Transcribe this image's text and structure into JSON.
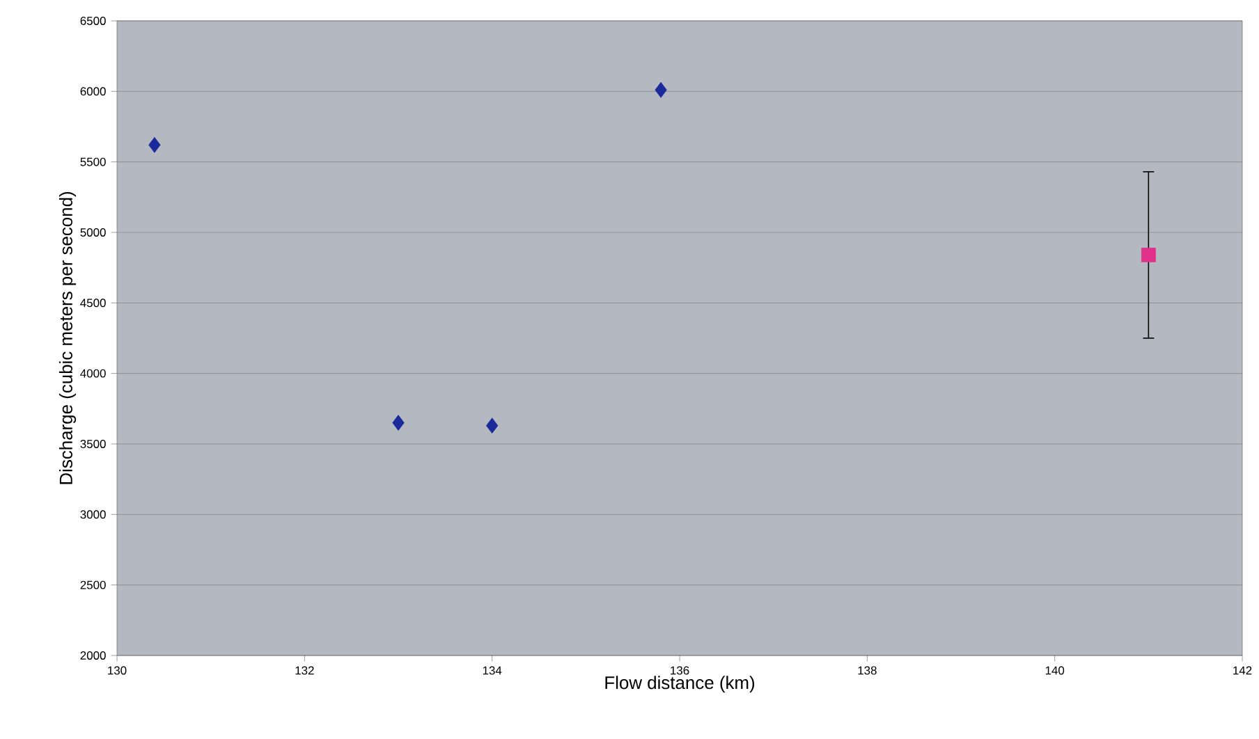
{
  "chart_data": {
    "type": "scatter",
    "xlabel": "Flow distance (km)",
    "ylabel": "Discharge (cubic meters per second)",
    "xlim": [
      130,
      142
    ],
    "ylim": [
      2000,
      6500
    ],
    "xticks": [
      130,
      132,
      134,
      136,
      138,
      140,
      142
    ],
    "yticks": [
      2000,
      2500,
      3000,
      3500,
      4000,
      4500,
      5000,
      5500,
      6000,
      6500
    ],
    "grid": "y",
    "series": [
      {
        "color": "#1a2a9a",
        "marker": "diamond",
        "x": [
          130.4,
          133.0,
          134.0,
          135.8
        ],
        "values": [
          5620,
          3650,
          3630,
          6010
        ]
      },
      {
        "color": "#e0308a",
        "marker": "square",
        "x": [
          141.0
        ],
        "values": [
          4840
        ],
        "errors": [
          [
            4250,
            5430
          ]
        ]
      }
    ]
  }
}
